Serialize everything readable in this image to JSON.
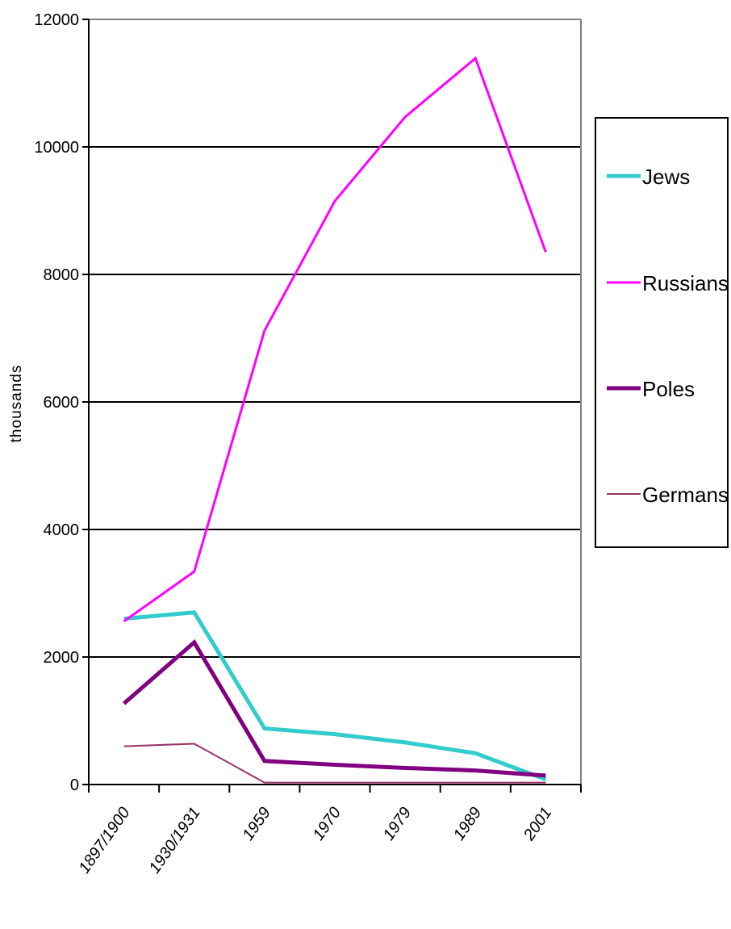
{
  "chart_data": {
    "type": "line",
    "title": "",
    "xlabel": "",
    "ylabel": "thousands",
    "categories": [
      "1897/1900",
      "1930/1931",
      "1959",
      "1970",
      "1979",
      "1989",
      "2001"
    ],
    "ylim": [
      0,
      12000
    ],
    "yticks": [
      "0",
      "2000",
      "4000",
      "6000",
      "8000",
      "10000",
      "12000"
    ],
    "grid": true,
    "legend_position": "right",
    "series": [
      {
        "name": "Jews",
        "color": "#33CCCC",
        "values": [
          2600,
          2700,
          880,
          790,
          660,
          490,
          80
        ]
      },
      {
        "name": "Russians",
        "color": "#FF00FF",
        "values": [
          2560,
          3340,
          7120,
          9150,
          10470,
          11390,
          8350
        ]
      },
      {
        "name": "Poles",
        "color": "#800080",
        "values": [
          1270,
          2230,
          370,
          310,
          260,
          220,
          140
        ]
      },
      {
        "name": "Germans",
        "color": "#993366",
        "values": [
          600,
          640,
          30,
          30,
          30,
          30,
          30
        ]
      }
    ]
  }
}
